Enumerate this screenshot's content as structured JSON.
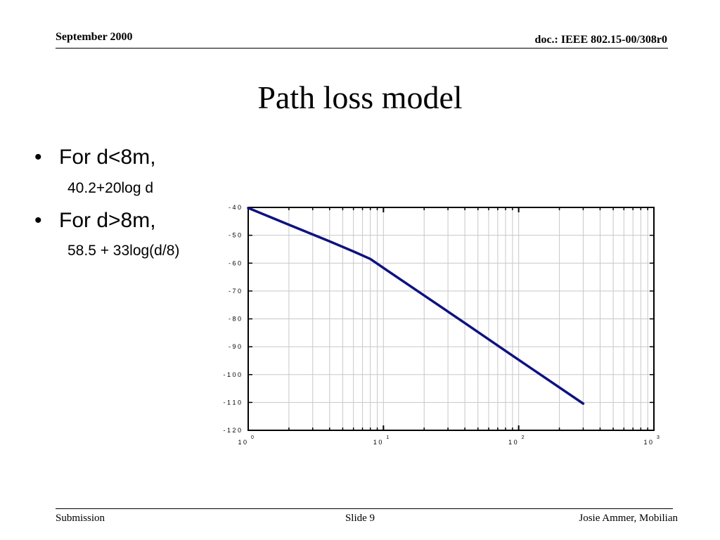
{
  "header": {
    "date": "September 2000",
    "doc": "doc.: IEEE 802.15-00/308r0"
  },
  "title": "Path loss model",
  "bullets": [
    {
      "text": "For d<8m,",
      "sub": "40.2+20log d"
    },
    {
      "text": "For d>8m,",
      "sub": "58.5 + 33log(d/8)"
    }
  ],
  "bullet_char": "•",
  "footer": {
    "left": "Submission",
    "center": "Slide 9",
    "right": "Josie Ammer, Mobilian"
  },
  "colors": {
    "line": "#0d1280",
    "grid": "#c8c8c8"
  },
  "chart_data": {
    "type": "line",
    "xscale": "log",
    "xlim": [
      1,
      1000
    ],
    "ylim": [
      -120,
      -40
    ],
    "xticks": [
      1,
      10,
      100,
      1000
    ],
    "xtick_labels": [
      {
        "base": "1 0",
        "exp": "0"
      },
      {
        "base": "1 0",
        "exp": "1"
      },
      {
        "base": "1 0",
        "exp": "2"
      },
      {
        "base": "1 0",
        "exp": "3"
      }
    ],
    "yticks": [
      -40,
      -50,
      -60,
      -70,
      -80,
      -90,
      -100,
      -110,
      -120
    ],
    "ytick_labels": [
      "- 4 0",
      "- 5 0",
      "- 6 0",
      "- 7 0",
      "- 8 0",
      "- 9 0",
      "- 1 0 0",
      "- 1 1 0",
      "- 1 2 0"
    ],
    "grid": true,
    "series": [
      {
        "x": [
          1,
          2,
          4,
          6,
          8,
          10,
          20,
          40,
          80,
          150,
          300
        ],
        "y": [
          -40.2,
          -46.2,
          -52.2,
          -55.8,
          -58.5,
          -61.7,
          -71.6,
          -81.5,
          -91.5,
          -100.5,
          -110.4
        ]
      }
    ]
  }
}
